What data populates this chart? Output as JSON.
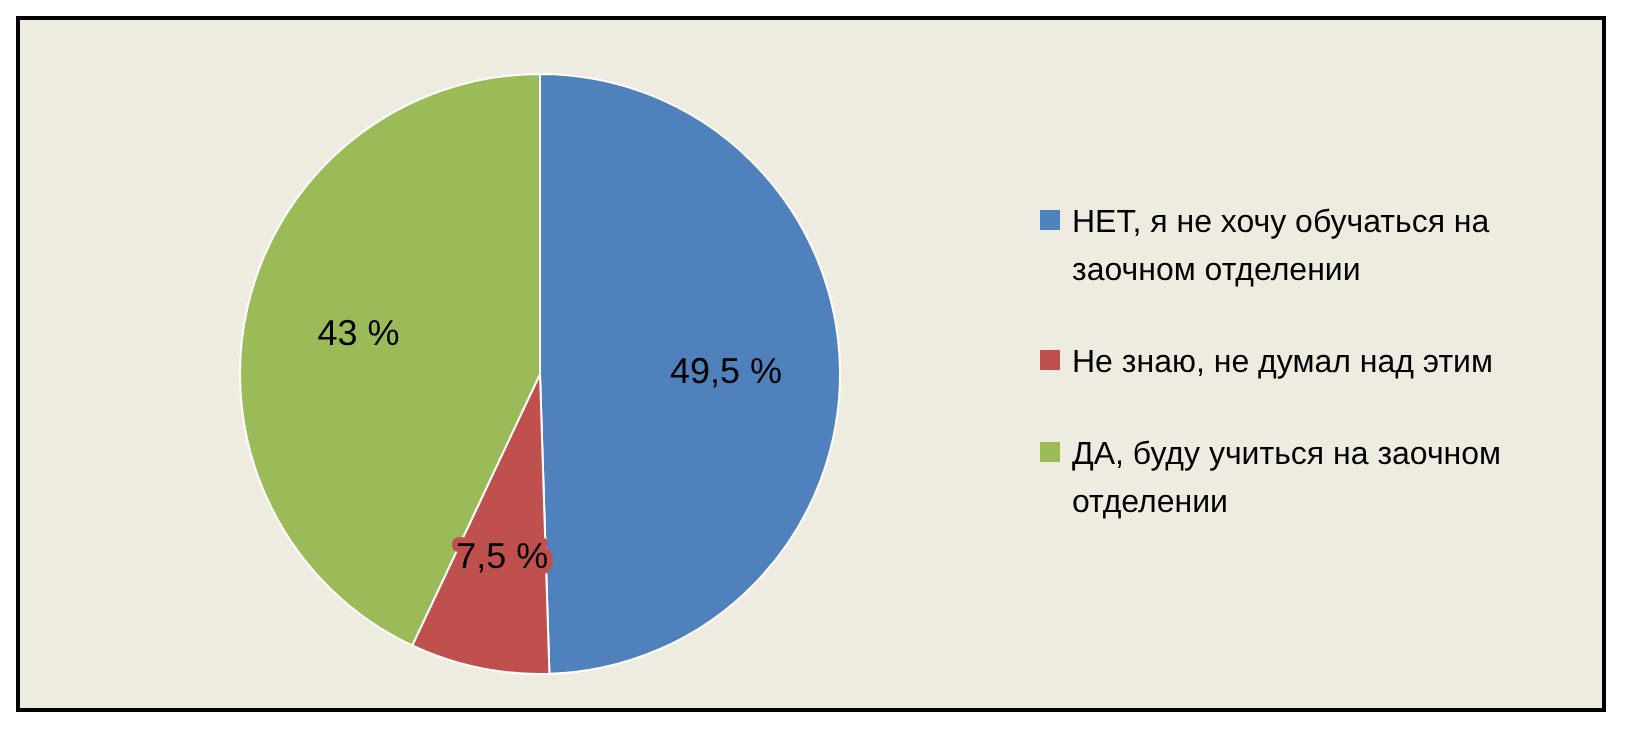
{
  "chart_data": {
    "type": "pie",
    "categories": [
      "НЕТ, я не хочу обучаться на заочном отделении",
      "Не знаю, не думал над этим",
      "ДА, буду учиться на заочном отделении"
    ],
    "values": [
      49.5,
      7.5,
      43
    ],
    "colors": [
      "#4f81bd",
      "#c0504d",
      "#9bbb59"
    ],
    "value_labels": [
      "49,5 %",
      "7,5 %",
      "43 %"
    ],
    "legend": "right"
  }
}
